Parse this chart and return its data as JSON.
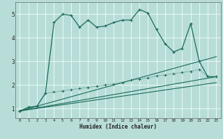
{
  "xlabel": "Humidex (Indice chaleur)",
  "bg_color": "#b8ddd8",
  "line_color": "#1a6b5a",
  "grid_color": "#e8f8f5",
  "xlim": [
    -0.5,
    23.5
  ],
  "ylim": [
    0.6,
    5.5
  ],
  "yticks": [
    1,
    2,
    3,
    4,
    5
  ],
  "xticks": [
    0,
    1,
    2,
    3,
    4,
    5,
    6,
    7,
    8,
    9,
    10,
    11,
    12,
    13,
    14,
    15,
    16,
    17,
    18,
    19,
    20,
    21,
    22,
    23
  ],
  "line1_x": [
    0,
    1,
    2,
    3,
    4,
    5,
    6,
    7,
    8,
    9,
    10,
    11,
    12,
    13,
    14,
    15,
    16,
    17,
    18,
    19,
    20,
    21,
    22,
    23
  ],
  "line1_y": [
    0.9,
    1.05,
    1.1,
    1.65,
    4.65,
    5.0,
    4.95,
    4.45,
    4.75,
    4.45,
    4.5,
    4.65,
    4.75,
    4.75,
    5.2,
    5.05,
    4.35,
    3.75,
    3.4,
    3.55,
    4.6,
    3.0,
    2.35,
    2.35
  ],
  "line2_x": [
    0,
    1,
    2,
    3,
    4,
    5,
    6,
    7,
    8,
    9,
    10,
    11,
    12,
    13,
    14,
    15,
    16,
    17,
    18,
    19,
    20,
    21,
    22,
    23
  ],
  "line2_y": [
    0.9,
    1.05,
    1.1,
    1.65,
    1.7,
    1.75,
    1.8,
    1.85,
    1.9,
    1.95,
    2.0,
    2.05,
    2.1,
    2.2,
    2.25,
    2.3,
    2.38,
    2.43,
    2.48,
    2.53,
    2.58,
    2.65,
    2.35,
    2.35
  ],
  "line3_x": [
    0,
    23
  ],
  "line3_y": [
    0.9,
    3.2
  ],
  "line4_x": [
    0,
    23
  ],
  "line4_y": [
    0.9,
    2.35
  ],
  "line5_x": [
    0,
    23
  ],
  "line5_y": [
    0.9,
    2.1
  ]
}
